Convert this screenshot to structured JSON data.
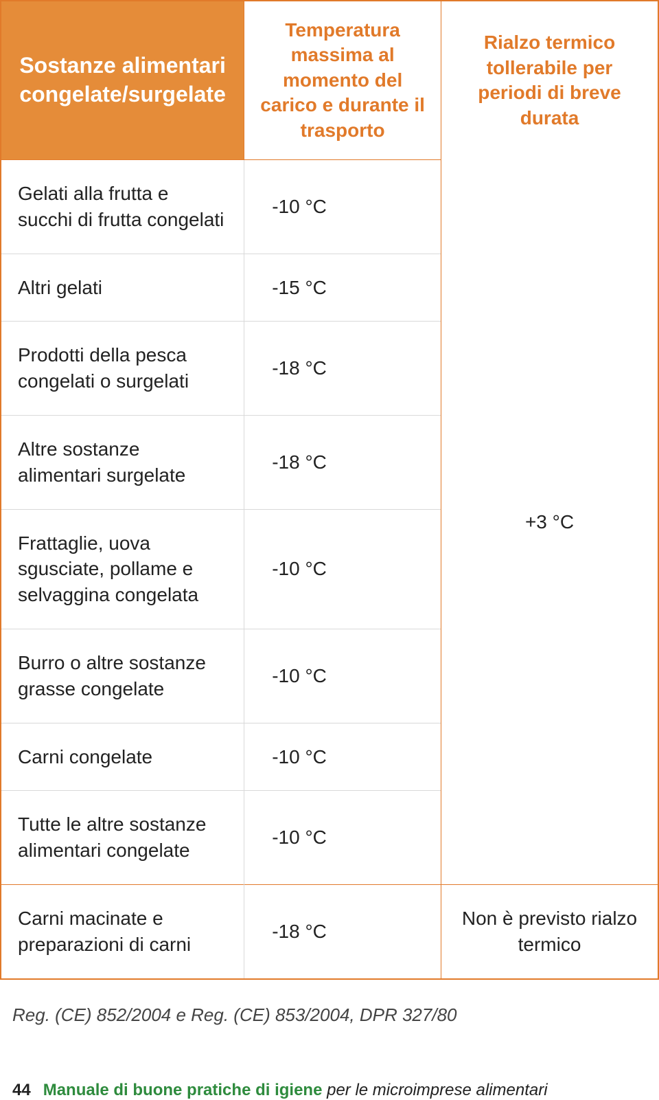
{
  "colors": {
    "accent": "#e17a2a",
    "header_bg": "#e58c39",
    "header_text": "#ffffff",
    "divider": "#d9d9d9",
    "text": "#222222",
    "manual_green": "#2e8b3d"
  },
  "table": {
    "headers": {
      "col1": "Sostanze alimentari congelate/surgelate",
      "col2": "Temperatura massima al momento del carico e durante il trasporto",
      "col3": "Rialzo termico tollerabile per periodi di breve durata"
    },
    "rows": [
      {
        "label": "Gelati alla frutta e succhi di frutta congelati",
        "temp": "-10 °C"
      },
      {
        "label": "Altri gelati",
        "temp": "-15 °C"
      },
      {
        "label": "Prodotti della pesca congelati o surgelati",
        "temp": "-18 °C"
      },
      {
        "label": "Altre sostanze alimentari surgelate",
        "temp": "-18 °C"
      },
      {
        "label": "Frattaglie, uova sgusciate, pollame e selvaggina congelata",
        "temp": "-10 °C"
      },
      {
        "label": "Burro o altre sostanze grasse congelate",
        "temp": "-10 °C"
      },
      {
        "label": "Carni congelate",
        "temp": "-10 °C"
      },
      {
        "label": "Tutte le altre sostanze alimentari congelate",
        "temp": "-10 °C"
      }
    ],
    "merged_right": "+3 °C",
    "last_row": {
      "label": "Carni macinate e preparazioni di carni",
      "temp": "-18 °C",
      "right": "Non è previsto rialzo termico"
    }
  },
  "reference": "Reg. (CE) 852/2004 e Reg. (CE) 853/2004, DPR 327/80",
  "footer": {
    "page_number": "44",
    "title_bold": "Manuale di buone pratiche di igiene",
    "title_rest": " per le microimprese alimentari"
  }
}
